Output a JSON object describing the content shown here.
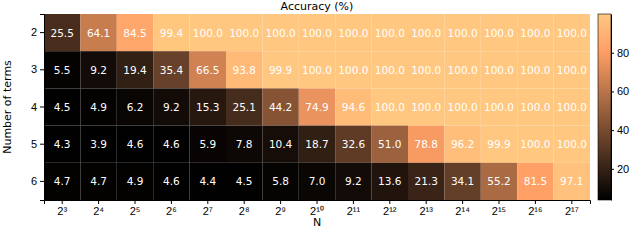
{
  "chart_data": {
    "type": "heatmap",
    "title": "Accuracy (%)",
    "x_label": "N",
    "y_label": "Number of terms",
    "x_categories": [
      "2³",
      "2⁴",
      "2⁵",
      "2⁶",
      "2⁷",
      "2⁸",
      "2⁹",
      "2¹⁰",
      "2¹¹",
      "2¹²",
      "2¹³",
      "2¹⁴",
      "2¹⁵",
      "2¹⁶",
      "2¹⁷"
    ],
    "y_categories": [
      2,
      3,
      4,
      5,
      6
    ],
    "values": [
      [
        25.5,
        64.1,
        84.5,
        99.4,
        100.0,
        100.0,
        100.0,
        100.0,
        100.0,
        100.0,
        100.0,
        100.0,
        100.0,
        100.0,
        100.0
      ],
      [
        5.5,
        9.2,
        19.4,
        35.4,
        66.5,
        93.8,
        99.9,
        100.0,
        100.0,
        100.0,
        100.0,
        100.0,
        100.0,
        100.0,
        100.0
      ],
      [
        4.5,
        4.9,
        6.2,
        9.2,
        15.3,
        25.1,
        44.2,
        74.9,
        94.6,
        100.0,
        100.0,
        100.0,
        100.0,
        100.0,
        100.0
      ],
      [
        4.3,
        3.9,
        4.6,
        4.6,
        5.9,
        7.8,
        10.4,
        18.7,
        32.6,
        51.0,
        78.8,
        96.2,
        99.9,
        100.0,
        100.0
      ],
      [
        4.7,
        4.7,
        4.9,
        4.6,
        4.4,
        4.5,
        5.8,
        7.0,
        9.2,
        13.6,
        21.3,
        34.1,
        55.2,
        81.5,
        97.1
      ]
    ],
    "value_labels": [
      [
        "25.5",
        "64.1",
        "84.5",
        "99.4",
        "100.0",
        "100.0",
        "100.0",
        "100.0",
        "100.0",
        "100.0",
        "100.0",
        "100.0",
        "100.0",
        "100.0",
        "100.0"
      ],
      [
        "5.5",
        "9.2",
        "19.4",
        "35.4",
        "66.5",
        "93.8",
        "99.9",
        "100.0",
        "100.0",
        "100.0",
        "100.0",
        "100.0",
        "100.0",
        "100.0",
        "100.0"
      ],
      [
        "4.5",
        "4.9",
        "6.2",
        "9.2",
        "15.3",
        "25.1",
        "44.2",
        "74.9",
        "94.6",
        "100.0",
        "100.0",
        "100.0",
        "100.0",
        "100.0",
        "100.0"
      ],
      [
        "4.3",
        "3.9",
        "4.6",
        "4.6",
        "5.9",
        "7.8",
        "10.4",
        "18.7",
        "32.6",
        "51.0",
        "78.8",
        "96.2",
        "99.9",
        "100.0",
        "100.0"
      ],
      [
        "4.7",
        "4.7",
        "4.9",
        "4.6",
        "4.4",
        "4.5",
        "5.8",
        "7.0",
        "9.2",
        "13.6",
        "21.3",
        "34.1",
        "55.2",
        "81.5",
        "97.1"
      ]
    ],
    "data_labels": true,
    "color": "copper",
    "color_bar": {
      "range": [
        3.9,
        100
      ],
      "ticks": [
        20,
        40,
        60,
        80
      ]
    }
  }
}
